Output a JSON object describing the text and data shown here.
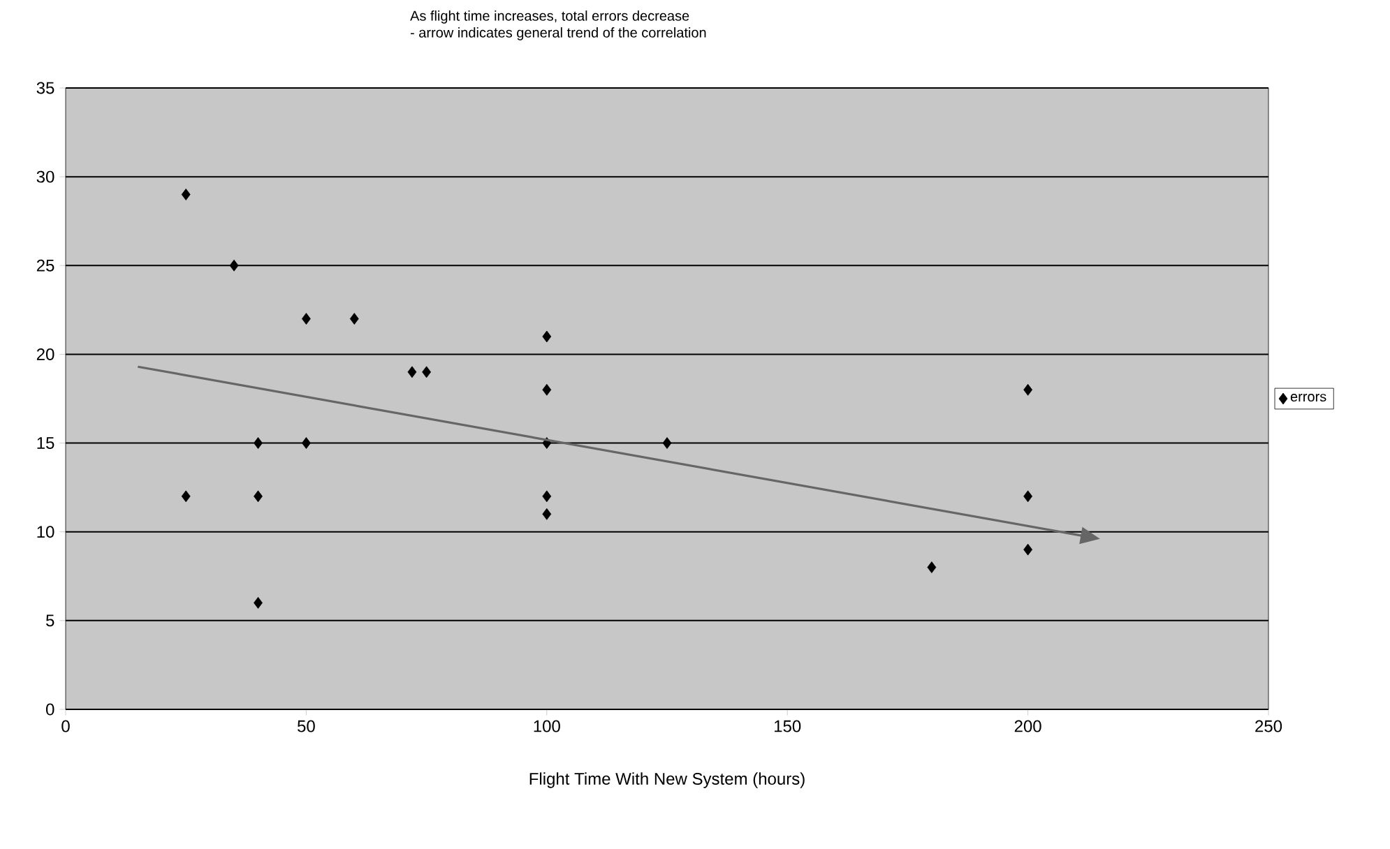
{
  "chart_data": {
    "type": "scatter",
    "title": "As flight time increases, total errors decrease",
    "subtitle": "- arrow indicates general trend of the correlation",
    "xlabel": "Flight Time With New System (hours)",
    "xlim": [
      0,
      250
    ],
    "xticks": [
      0,
      50,
      100,
      150,
      200,
      250
    ],
    "ylim": [
      0,
      35
    ],
    "yticks": [
      0,
      5,
      10,
      15,
      20,
      25,
      30,
      35
    ],
    "grid": "y",
    "legend": "right",
    "marker": "diamond",
    "series": [
      {
        "name": "errors",
        "color": "#000000",
        "x": [
          25,
          35,
          50,
          60,
          72,
          75,
          100,
          100,
          40,
          50,
          100,
          125,
          25,
          40,
          100,
          100,
          40,
          180,
          200,
          200,
          200
        ],
        "values": [
          29,
          25,
          22,
          22,
          19,
          19,
          21,
          18,
          15,
          15,
          15,
          15,
          12,
          12,
          12,
          11,
          6,
          8,
          18,
          12,
          9
        ]
      }
    ]
  }
}
